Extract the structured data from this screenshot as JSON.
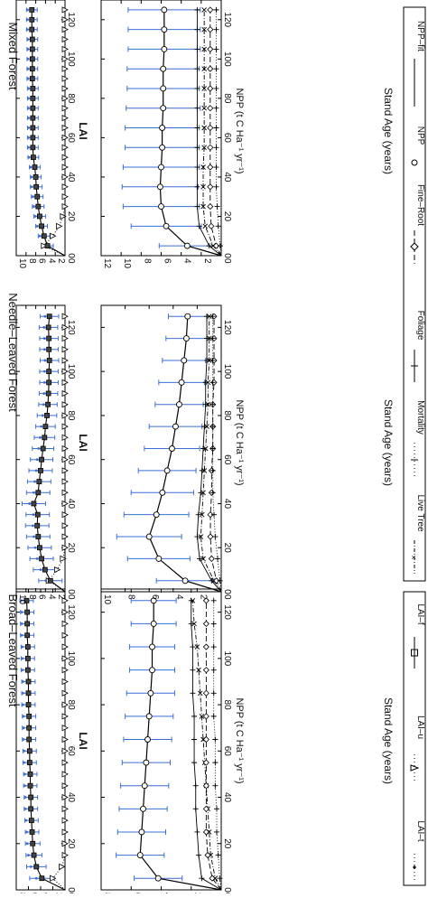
{
  "figure": {
    "forest_types": [
      "Broad–Leaved Forest",
      "Needle–Leaved Forest",
      "Mixed Forest"
    ],
    "lai_axis_label": "LAI",
    "npp_axis_label": "NPP (t C Ha⁻¹ yr⁻¹)",
    "age_axis_label": "Stand Age (years)",
    "legend_left": [
      "LAI–t",
      "LAI–u",
      "LAI–f"
    ],
    "legend_right": [
      "Live Tree",
      "Mortality",
      "Foliage",
      "Fine–Root",
      "NPP",
      "NPP–fit"
    ]
  },
  "colors": {
    "errorbar": "#3a6fd8",
    "line": "#000000"
  },
  "chart_data": [
    {
      "type": "line",
      "title": "Broad–Leaved Forest",
      "ylabel": "LAI",
      "x": [
        5,
        10,
        15,
        20,
        25,
        30,
        35,
        40,
        45,
        50,
        55,
        60,
        65,
        70,
        75,
        80,
        85,
        90,
        95,
        100,
        105,
        110,
        115,
        120,
        125
      ],
      "xlim": [
        0,
        130
      ],
      "ylim": [
        0,
        8
      ],
      "xticks": [
        0,
        20,
        40,
        60,
        80,
        100,
        120
      ],
      "yticks": [
        0,
        2,
        4,
        6,
        8
      ],
      "series": [
        {
          "name": "LAI–f",
          "values": [
            3.8,
            4.7,
            5.1,
            5.3,
            5.4,
            5.5,
            5.6,
            5.6,
            5.7,
            5.7,
            5.8,
            5.8,
            5.9,
            5.9,
            5.9,
            6.0,
            6.0,
            6.0,
            6.1,
            6.1,
            6.1,
            6.2,
            6.2,
            6.2,
            6.3
          ],
          "error": [
            2.0,
            1.6,
            1.3,
            1.2,
            1.1,
            1.1,
            1.1,
            1.1,
            1.1,
            1.1,
            1.1,
            1.1,
            1.1,
            1.1,
            1.1,
            1.1,
            1.1,
            1.1,
            1.1,
            1.1,
            1.1,
            1.1,
            1.1,
            1.1,
            1.1
          ]
        },
        {
          "name": "LAI–t",
          "values": [
            2.0,
            0.5,
            0,
            0,
            0,
            0,
            0,
            0,
            0,
            0,
            0,
            0,
            0,
            0,
            0,
            0,
            0,
            0,
            0,
            0,
            0,
            0,
            0,
            0,
            0
          ]
        }
      ]
    },
    {
      "type": "line",
      "title": "Needle–Leaved Forest",
      "ylabel": "LAI",
      "x": [
        5,
        10,
        15,
        20,
        25,
        30,
        35,
        40,
        45,
        50,
        55,
        60,
        65,
        70,
        75,
        80,
        85,
        90,
        95,
        100,
        105,
        110,
        115,
        120,
        125
      ],
      "xlim": [
        0,
        130
      ],
      "ylim": [
        0,
        10
      ],
      "xticks": [
        0,
        20,
        40,
        60,
        80,
        100,
        120
      ],
      "yticks": [
        0,
        2,
        4,
        6,
        8,
        10
      ],
      "series": [
        {
          "name": "LAI–f",
          "values": [
            3.0,
            4.1,
            4.8,
            5.2,
            5.5,
            5.7,
            5.6,
            6.4,
            5.5,
            5.3,
            5.0,
            4.8,
            4.5,
            4.2,
            4.0,
            3.7,
            3.5,
            3.4,
            3.3,
            3.3,
            3.2,
            3.3,
            3.3,
            3.4,
            3.2
          ],
          "error": [
            2.4,
            2.4,
            2.4,
            2.4,
            2.4,
            2.4,
            2.4,
            2.4,
            2.4,
            2.4,
            2.4,
            2.3,
            2.2,
            2.1,
            2.0,
            2.0,
            1.9,
            1.9,
            1.9,
            1.9,
            1.9,
            1.9,
            1.9,
            1.9,
            1.9
          ]
        },
        {
          "name": "LAI–t",
          "values": [
            3.3,
            1.6,
            0.4,
            0,
            0,
            0,
            0,
            0,
            0,
            0,
            0,
            0,
            0,
            0,
            0,
            0,
            0,
            0,
            0,
            0,
            0,
            0,
            0,
            0,
            0
          ]
        }
      ]
    },
    {
      "type": "line",
      "title": "Mixed Forest",
      "ylabel": "LAI",
      "x": [
        5,
        10,
        15,
        20,
        25,
        30,
        35,
        40,
        45,
        50,
        55,
        60,
        65,
        70,
        75,
        80,
        85,
        90,
        95,
        100,
        105,
        110,
        115,
        120,
        125
      ],
      "xlim": [
        0,
        130
      ],
      "ylim": [
        0,
        10
      ],
      "xticks": [
        0,
        20,
        40,
        60,
        80,
        100,
        120
      ],
      "yticks": [
        0,
        2,
        4,
        6,
        8,
        10
      ],
      "series": [
        {
          "name": "LAI–f",
          "values": [
            3.6,
            4.3,
            4.8,
            5.2,
            5.5,
            5.7,
            5.9,
            6.0,
            6.2,
            6.5,
            6.6,
            6.6,
            6.6,
            6.6,
            6.6,
            6.6,
            6.6,
            6.7,
            6.7,
            6.7,
            6.7,
            6.7,
            6.8,
            6.8,
            6.8
          ],
          "error": [
            1.2,
            1.2,
            1.2,
            1.2,
            1.2,
            1.2,
            1.2,
            1.1,
            1.1,
            1.1,
            1.1,
            1.1,
            1.1,
            1.1,
            1.1,
            1.1,
            1.1,
            1.1,
            1.1,
            1.1,
            1.1,
            1.1,
            1.1,
            1.1,
            1.1
          ]
        },
        {
          "name": "LAI–t",
          "values": [
            4.3,
            2.5,
            1.2,
            0.4,
            0,
            0,
            0,
            0,
            0,
            0,
            0,
            0,
            0,
            0,
            0,
            0,
            0,
            0,
            0,
            0,
            0,
            0,
            0,
            0,
            0
          ]
        }
      ]
    },
    {
      "type": "line",
      "title": "Broad–Leaved Forest",
      "ylabel": "NPP (t C Ha⁻¹ yr⁻¹)",
      "xlabel": "Stand Age (years)",
      "x": [
        5,
        15,
        25,
        35,
        45,
        55,
        65,
        75,
        85,
        95,
        105,
        115,
        125
      ],
      "xlim": [
        0,
        130
      ],
      "ylim": [
        0,
        8
      ],
      "xticks": [
        0,
        20,
        40,
        60,
        80,
        100,
        120
      ],
      "yticks": [
        0,
        2,
        4,
        6,
        8
      ],
      "series": [
        {
          "name": "NPP",
          "values": [
            4.2,
            5.4,
            5.3,
            5.2,
            5.1,
            5.0,
            4.9,
            4.8,
            4.7,
            4.6,
            4.6,
            4.5,
            4.5
          ],
          "error": [
            1.6,
            1.6,
            1.6,
            1.6,
            1.6,
            1.6,
            1.6,
            1.6,
            1.6,
            1.5,
            1.5,
            1.5,
            1.5
          ]
        },
        {
          "name": "Foliage",
          "values": [
            1.3,
            1.5,
            1.6,
            1.7,
            1.7,
            1.8,
            1.8,
            1.8,
            1.9,
            1.9,
            1.9,
            2.0,
            2.0
          ]
        },
        {
          "name": "Live Tree",
          "values": [
            0.4,
            0.7,
            0.8,
            0.9,
            1.0,
            1.1,
            1.2,
            1.3,
            1.4,
            1.5,
            1.6,
            1.8,
            1.9
          ]
        },
        {
          "name": "Fine–Root",
          "values": [
            0.6,
            0.9,
            1.0,
            1.0,
            1.0,
            1.0,
            1.0,
            1.0,
            1.0,
            1.0,
            1.0,
            1.0,
            1.0
          ]
        },
        {
          "name": "Mortality",
          "values": [
            0.1,
            0.2,
            0.3,
            0.3,
            0.4,
            0.4,
            0.4,
            0.5,
            0.5,
            0.5,
            0.5,
            0.5,
            0.5
          ]
        }
      ]
    },
    {
      "type": "line",
      "title": "Needle–Leaved Forest",
      "ylabel": "NPP (t C Ha⁻¹ yr⁻¹)",
      "xlabel": "Stand Age (years)",
      "x": [
        5,
        15,
        25,
        35,
        45,
        55,
        65,
        75,
        85,
        95,
        105,
        115,
        125
      ],
      "xlim": [
        0,
        130
      ],
      "ylim": [
        0,
        10
      ],
      "xticks": [
        0,
        20,
        40,
        60,
        80,
        100,
        120
      ],
      "yticks": [
        0,
        2,
        4,
        6,
        8,
        10
      ],
      "series": [
        {
          "name": "NPP",
          "values": [
            3.0,
            5.2,
            6.0,
            5.4,
            4.9,
            4.5,
            4.1,
            3.8,
            3.5,
            3.3,
            3.1,
            2.9,
            2.8
          ],
          "error": [
            2.4,
            2.6,
            2.7,
            2.7,
            2.6,
            2.4,
            2.3,
            2.2,
            2.0,
            1.9,
            1.8,
            1.7,
            1.6
          ]
        },
        {
          "name": "Foliage",
          "values": [
            0.8,
            1.8,
            2.0,
            1.9,
            1.7,
            1.6,
            1.5,
            1.4,
            1.3,
            1.3,
            1.2,
            1.2,
            1.2
          ]
        },
        {
          "name": "Live Tree",
          "values": [
            0.6,
            1.5,
            1.7,
            1.6,
            1.5,
            1.4,
            1.3,
            1.2,
            1.1,
            1.1,
            1.0,
            1.0,
            1.0
          ]
        },
        {
          "name": "Fine–Root",
          "values": [
            0.4,
            0.8,
            0.9,
            0.9,
            0.8,
            0.8,
            0.7,
            0.7,
            0.7,
            0.6,
            0.6,
            0.6,
            0.6
          ]
        },
        {
          "name": "Mortality",
          "values": [
            0.1,
            0.3,
            0.5,
            0.6,
            0.7,
            0.7,
            0.7,
            0.7,
            0.7,
            0.7,
            0.7,
            0.7,
            0.7
          ]
        }
      ]
    },
    {
      "type": "line",
      "title": "Mixed Forest",
      "ylabel": "NPP (t C Ha⁻¹ yr⁻¹)",
      "xlabel": "Stand Age (years)",
      "x": [
        5,
        15,
        25,
        35,
        45,
        55,
        65,
        75,
        85,
        95,
        105,
        115,
        125
      ],
      "xlim": [
        0,
        130
      ],
      "ylim": [
        0,
        12
      ],
      "xticks": [
        0,
        20,
        40,
        60,
        80,
        100,
        120
      ],
      "yticks": [
        0,
        2,
        4,
        6,
        8,
        10,
        12
      ],
      "series": [
        {
          "name": "NPP",
          "values": [
            3.4,
            5.5,
            6.0,
            6.1,
            6.0,
            5.9,
            5.9,
            5.8,
            5.8,
            5.8,
            5.7,
            5.7,
            5.7
          ],
          "error": [
            2.8,
            3.5,
            3.8,
            3.8,
            3.8,
            3.7,
            3.7,
            3.7,
            3.6,
            3.6,
            3.6,
            3.6,
            3.6
          ]
        },
        {
          "name": "Foliage",
          "values": [
            1.2,
            2.2,
            2.4,
            2.4,
            2.4,
            2.4,
            2.4,
            2.4,
            2.4,
            2.4,
            2.4,
            2.4,
            2.4
          ]
        },
        {
          "name": "Live Tree",
          "values": [
            0.8,
            1.6,
            1.8,
            1.8,
            1.8,
            1.7,
            1.7,
            1.7,
            1.7,
            1.7,
            1.7,
            1.7,
            1.7
          ]
        },
        {
          "name": "Fine–Root",
          "values": [
            0.5,
            1.0,
            1.1,
            1.1,
            1.1,
            1.1,
            1.1,
            1.1,
            1.1,
            1.1,
            1.1,
            1.1,
            1.1
          ]
        },
        {
          "name": "Mortality",
          "values": [
            0.1,
            0.3,
            0.4,
            0.5,
            0.5,
            0.5,
            0.5,
            0.5,
            0.5,
            0.5,
            0.5,
            0.5,
            0.5
          ]
        }
      ]
    }
  ]
}
